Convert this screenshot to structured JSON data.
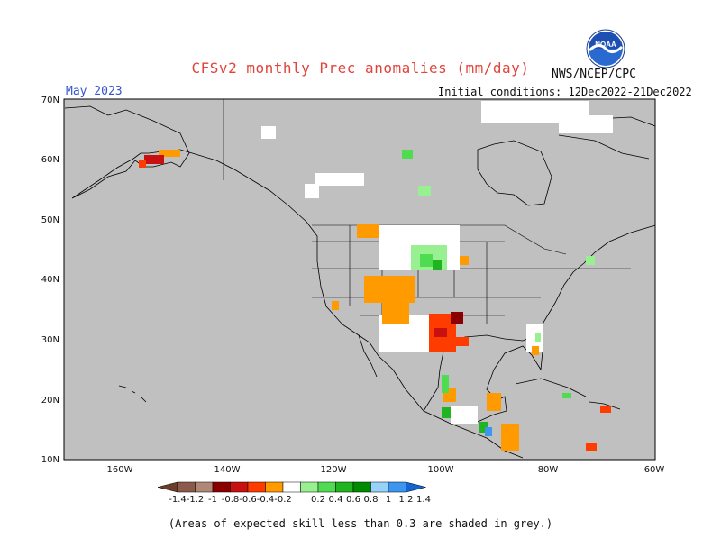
{
  "header": {
    "title": "CFSv2 monthly Prec anomalies (mm/day)",
    "agency": "NWS/NCEP/CPC",
    "logo_text": "NOAA"
  },
  "map": {
    "month_label": "May 2023",
    "initial_conditions": "Initial conditions: 12Dec2022-21Dec2022",
    "lat_labels": [
      "70N",
      "60N",
      "50N",
      "40N",
      "30N",
      "20N",
      "10N"
    ],
    "lon_labels": [
      "160W",
      "140W",
      "120W",
      "100W",
      "80W",
      "60W"
    ],
    "background_color": "#c0c0c0"
  },
  "legend": {
    "tick_labels": [
      "-1.4",
      "-1.2",
      "-1",
      "-0.8",
      "-0.6",
      "-0.4",
      "-0.2",
      "0.2",
      "0.4",
      "0.6",
      "0.8",
      "1",
      "1.2",
      "1.4"
    ],
    "colors": [
      "#6b3d2a",
      "#8c5a4a",
      "#b08878",
      "#8a0000",
      "#c81010",
      "#ff3c00",
      "#ff9a00",
      "#ffffff",
      "#98f090",
      "#50dc50",
      "#20b420",
      "#008c00",
      "#96d2fa",
      "#3c96f0",
      "#1464d2"
    ]
  },
  "caption": "(Areas of expected skill less than 0.3 are shaded in grey.)"
}
